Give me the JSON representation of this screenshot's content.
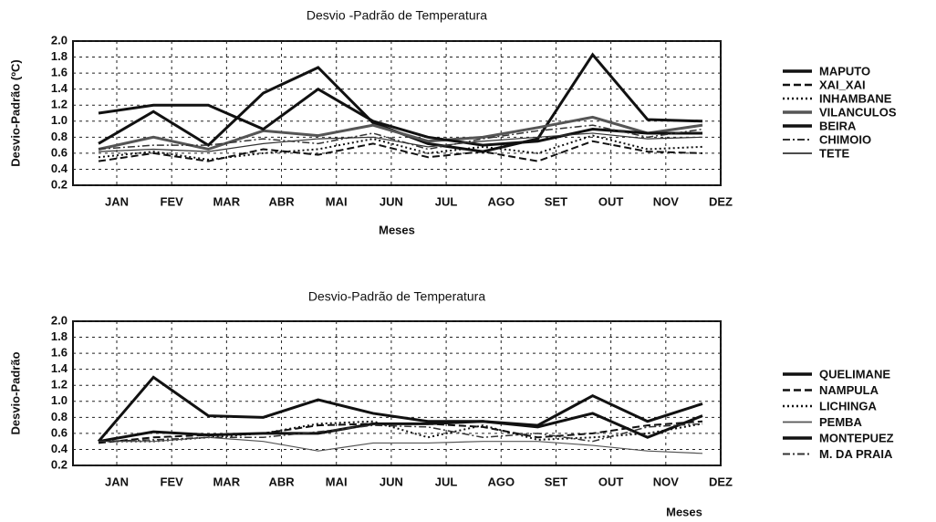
{
  "chart_data": [
    {
      "type": "line",
      "title": "Desvio -Padrão de Temperatura",
      "x_label": "Meses",
      "y_label": "Desvio-Padrão (ºC)",
      "categories": [
        "JAN",
        "FEV",
        "MAR",
        "ABR",
        "MAI",
        "JUN",
        "JUL",
        "AGO",
        "SET",
        "OUT",
        "NOV",
        "DEZ"
      ],
      "ylim": [
        0.2,
        2.0
      ],
      "yticks": [
        {
          "value": 2.0,
          "label": "2.0"
        },
        1.8,
        1.6,
        1.4,
        1.2,
        {
          "value": 1.0,
          "label": "1.0"
        },
        0.8,
        0.6,
        0.4,
        0.2
      ],
      "grid": true,
      "series": [
        {
          "name": "MAPUTO",
          "color": "#111111",
          "style": "solid",
          "values": [
            0.72,
            1.12,
            0.7,
            1.35,
            1.67,
            0.98,
            0.72,
            0.62,
            0.78,
            1.83,
            1.02,
            1.0
          ]
        },
        {
          "name": "XAI_XAI",
          "color": "#111111",
          "style": "dashed",
          "values": [
            0.5,
            0.6,
            0.5,
            0.65,
            0.58,
            0.72,
            0.55,
            0.62,
            0.5,
            0.75,
            0.62,
            0.6
          ]
        },
        {
          "name": "INHAMBANE",
          "color": "#111111",
          "style": "dotted",
          "values": [
            0.55,
            0.62,
            0.52,
            0.6,
            0.65,
            0.78,
            0.6,
            0.68,
            0.6,
            0.82,
            0.65,
            0.68
          ]
        },
        {
          "name": "VILANCULOS",
          "color": "#555555",
          "style": "solid",
          "values": [
            0.65,
            0.8,
            0.65,
            0.88,
            0.82,
            0.95,
            0.75,
            0.8,
            0.92,
            1.05,
            0.85,
            0.95
          ]
        },
        {
          "name": "BEIRA",
          "color": "#111111",
          "style": "solid",
          "values": [
            1.1,
            1.2,
            1.2,
            0.9,
            1.4,
            1.0,
            0.8,
            0.7,
            0.75,
            0.9,
            0.85,
            0.85
          ]
        },
        {
          "name": "CHIMOIO",
          "color": "#333333",
          "style": "dashdot",
          "values": [
            0.65,
            0.7,
            0.7,
            0.78,
            0.72,
            0.85,
            0.65,
            0.78,
            0.88,
            0.95,
            0.8,
            0.9
          ]
        },
        {
          "name": "TETE",
          "color": "#333333",
          "style": "thin",
          "values": [
            0.62,
            0.65,
            0.62,
            0.72,
            0.78,
            0.8,
            0.68,
            0.75,
            0.8,
            0.85,
            0.78,
            0.8
          ]
        }
      ]
    },
    {
      "type": "line",
      "title": "Desvio-Padrão de Temperatura",
      "x_label": "Meses",
      "y_label": "Desvio-Padrão",
      "categories": [
        "JAN",
        "FEV",
        "MAR",
        "ABR",
        "MAI",
        "JUN",
        "JUL",
        "AGO",
        "SET",
        "OUT",
        "NOV",
        "DEZ"
      ],
      "ylim": [
        0.2,
        2.0
      ],
      "yticks": [
        {
          "value": 2.0,
          "label": "2.0"
        },
        1.8,
        1.6,
        1.4,
        1.2,
        {
          "value": 1.0,
          "label": "1.0"
        },
        0.8,
        0.6,
        0.4,
        0.2
      ],
      "grid": true,
      "series": [
        {
          "name": "QUELIMANE",
          "color": "#111111",
          "style": "solid",
          "values": [
            0.5,
            1.3,
            0.82,
            0.8,
            1.02,
            0.85,
            0.75,
            0.75,
            0.7,
            1.07,
            0.75,
            0.97
          ]
        },
        {
          "name": "NAMPULA",
          "color": "#111111",
          "style": "dashed",
          "values": [
            0.48,
            0.55,
            0.58,
            0.6,
            0.7,
            0.72,
            0.72,
            0.68,
            0.55,
            0.6,
            0.7,
            0.75
          ]
        },
        {
          "name": "LICHINGA",
          "color": "#111111",
          "style": "dotted",
          "values": [
            0.5,
            0.5,
            0.55,
            0.6,
            0.72,
            0.75,
            0.55,
            0.7,
            0.52,
            0.55,
            0.6,
            0.72
          ]
        },
        {
          "name": "PEMBA",
          "color": "#555555",
          "style": "thin",
          "values": [
            0.5,
            0.5,
            0.55,
            0.5,
            0.38,
            0.48,
            0.48,
            0.5,
            0.5,
            0.45,
            0.38,
            0.35
          ]
        },
        {
          "name": "MONTEPUEZ",
          "color": "#111111",
          "style": "solid",
          "values": [
            0.5,
            0.62,
            0.58,
            0.6,
            0.6,
            0.72,
            0.72,
            0.75,
            0.68,
            0.85,
            0.55,
            0.82
          ]
        },
        {
          "name": "M. DA PRAIA",
          "color": "#333333",
          "style": "dashdot",
          "values": [
            0.5,
            0.52,
            0.55,
            0.55,
            0.62,
            0.7,
            0.68,
            0.55,
            0.6,
            0.5,
            0.68,
            0.72
          ]
        }
      ]
    }
  ]
}
